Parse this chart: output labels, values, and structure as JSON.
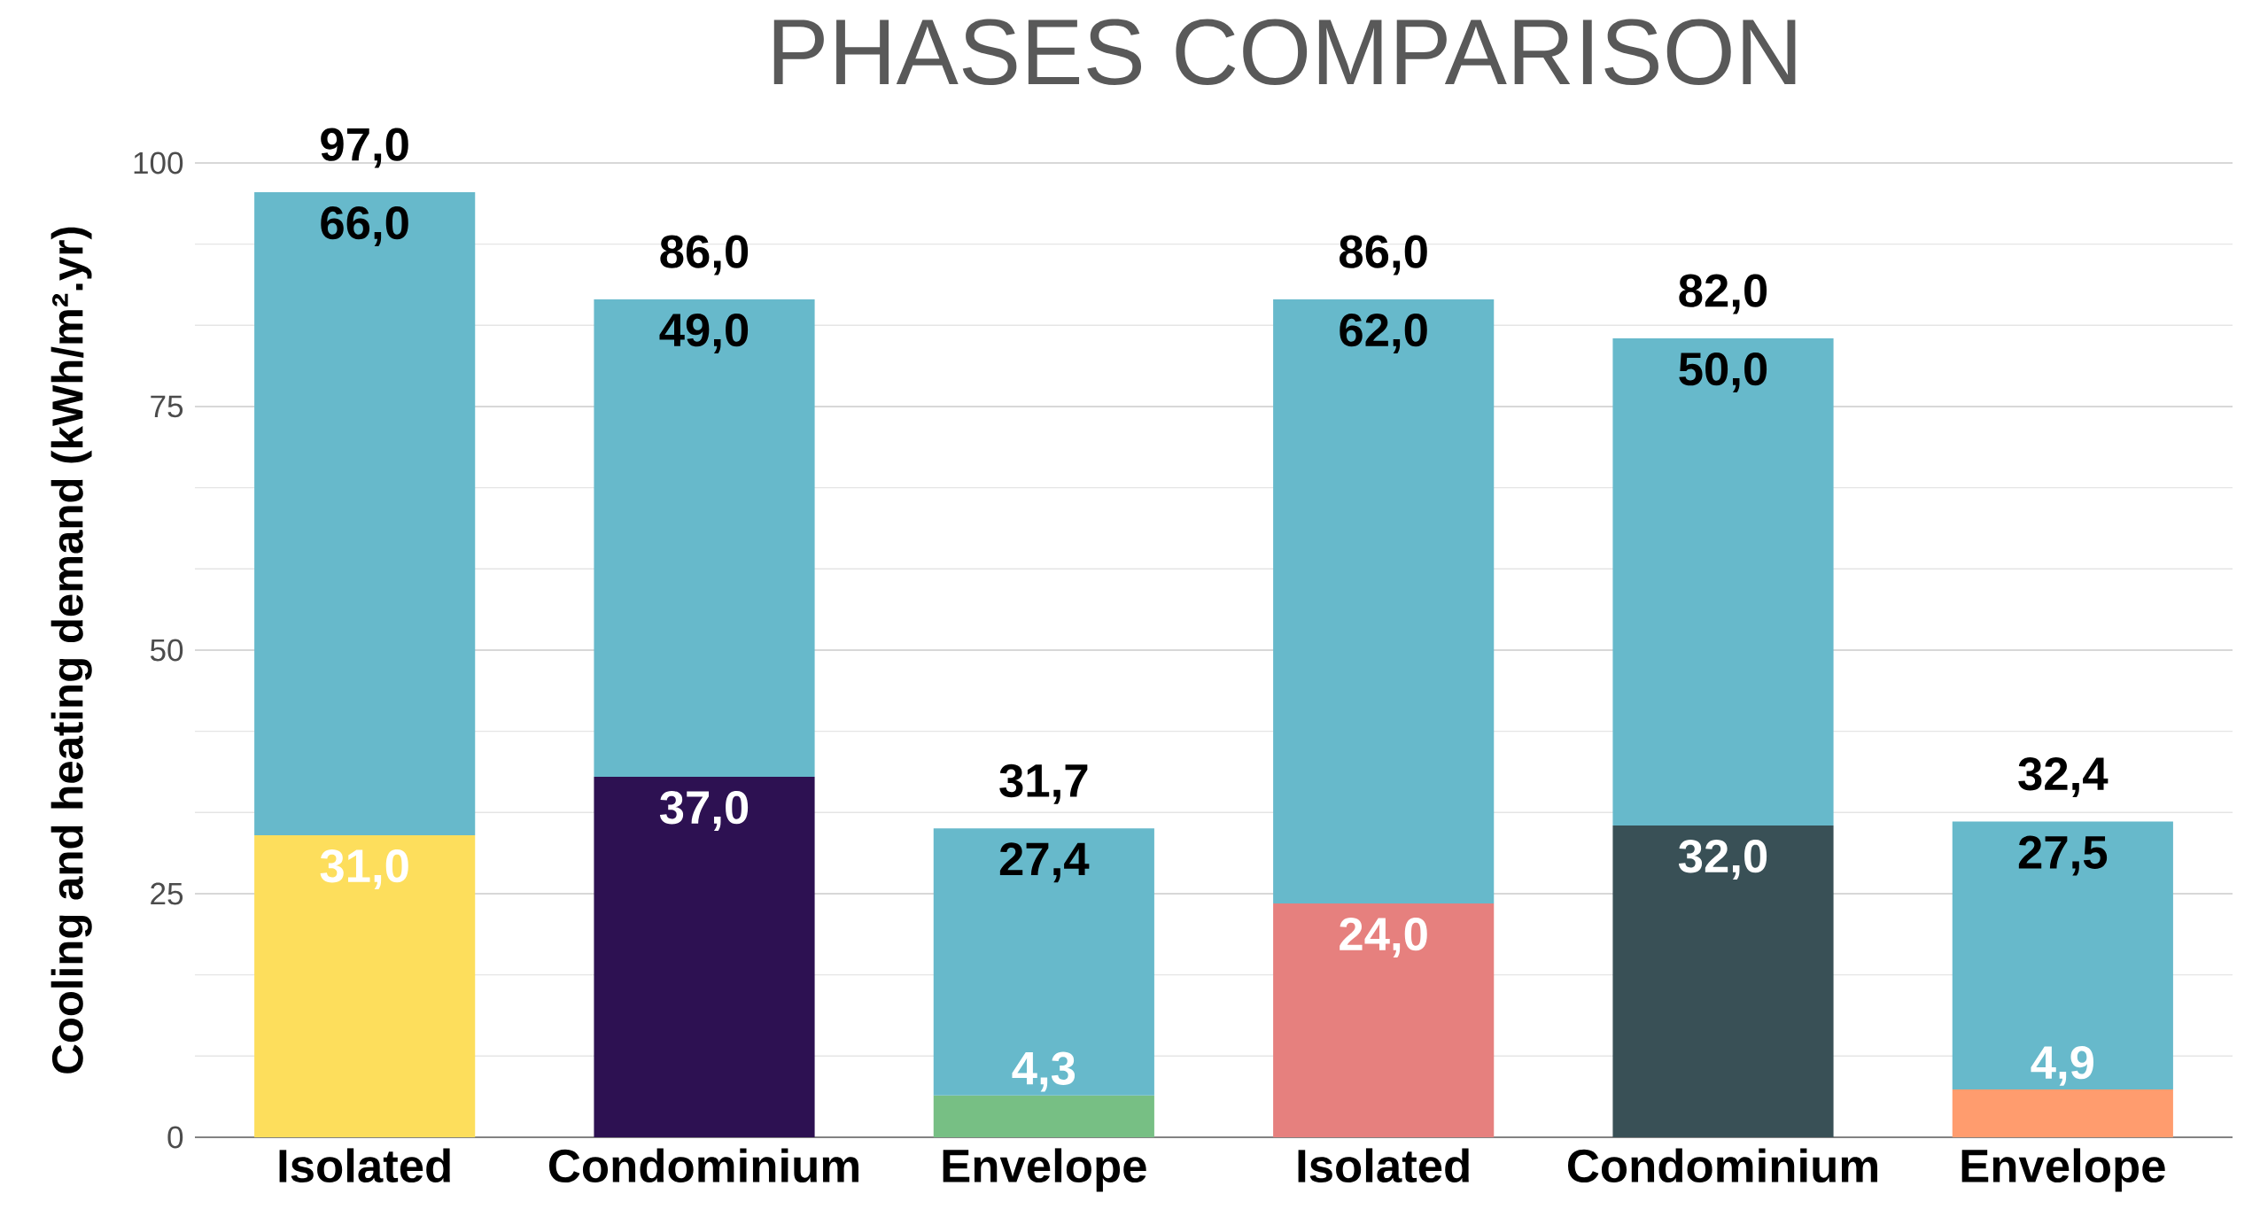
{
  "chart_data": {
    "type": "bar",
    "title": "PHASES COMPARISON",
    "ylabel": "Cooling and heating demand (kWh/m².yr)",
    "categories": [
      "Isolated",
      "Condominium",
      "Envelope",
      "Isolated",
      "Condominium",
      "Envelope"
    ],
    "stacked": true,
    "series": [
      {
        "colors": [
          "#fdde5c",
          "#2d1152",
          "#77bf84",
          "#e6807e",
          "#395056",
          "#ff9c6e"
        ],
        "values": [
          31.0,
          37.0,
          4.3,
          24.0,
          32.0,
          4.9
        ],
        "value_labels": [
          "31,0",
          "37,0",
          "4,3",
          "24,0",
          "32,0",
          "4,9"
        ]
      },
      {
        "color": "#67b9cb",
        "values": [
          66.0,
          49.0,
          27.4,
          62.0,
          50.0,
          27.5
        ],
        "value_labels": [
          "66,0",
          "49,0",
          "27,4",
          "62,0",
          "50,0",
          "27,5"
        ]
      }
    ],
    "totals": [
      "97,0",
      "86,0",
      "31,7",
      "86,0",
      "82,0",
      "32,4"
    ],
    "ylim": [
      0,
      100
    ],
    "yticks": [
      0,
      25,
      50,
      75,
      100
    ],
    "grid": "y"
  }
}
